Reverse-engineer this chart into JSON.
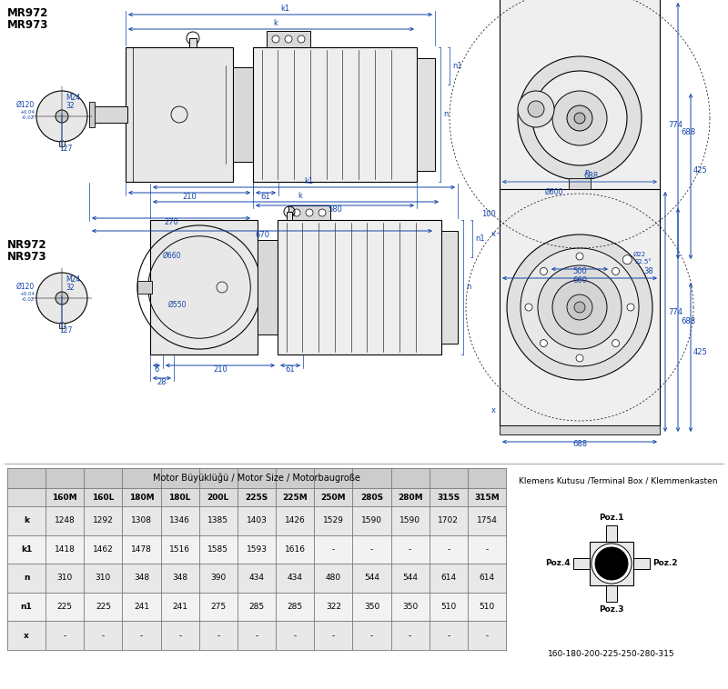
{
  "title_mr": "MR972\nMR973",
  "title_nr": "NR972\nNR973",
  "table_header": "Motor BüYüKlüğü / Motor Size / Motorbauɡroße",
  "table_header_text": "Motor Büyüklüğü / Motor Size / Motorbaugroße",
  "col_headers": [
    "",
    "160M",
    "160L",
    "180M",
    "180L",
    "200L",
    "225S",
    "225M",
    "250M",
    "280S",
    "280M",
    "315S",
    "315M"
  ],
  "row_labels": [
    "k",
    "k1",
    "n",
    "n1",
    "x"
  ],
  "table_data": [
    [
      "1248",
      "1292",
      "1308",
      "1346",
      "1385",
      "1403",
      "1426",
      "1529",
      "1590",
      "1590",
      "1702",
      "1754"
    ],
    [
      "1418",
      "1462",
      "1478",
      "1516",
      "1585",
      "1593",
      "1616",
      "-",
      "-",
      "-",
      "-",
      "-"
    ],
    [
      "310",
      "310",
      "348",
      "348",
      "390",
      "434",
      "434",
      "480",
      "544",
      "544",
      "614",
      "614"
    ],
    [
      "225",
      "225",
      "241",
      "241",
      "275",
      "285",
      "285",
      "322",
      "350",
      "350",
      "510",
      "510"
    ],
    [
      "-",
      "-",
      "-",
      "-",
      "-",
      "-",
      "-",
      "-",
      "-",
      "-",
      "-",
      "-"
    ]
  ],
  "terminal_box_label": "Klemens Kutusu /Terminal Box / Klemmenkasten",
  "terminal_positions": [
    "Poz.1",
    "Poz.2",
    "Poz.3",
    "Poz.4"
  ],
  "terminal_sizes": "160-180-200-225-250-280-315",
  "bg_color": "#ffffff",
  "table_header_bg": "#cccccc",
  "table_subheader_bg": "#dddddd",
  "table_row_bg1": "#e8e8e8",
  "table_row_bg2": "#f2f2f2",
  "text_color": "#000000",
  "border_color": "#888888",
  "dim_color": "#1144aa",
  "line_color": "#000000"
}
